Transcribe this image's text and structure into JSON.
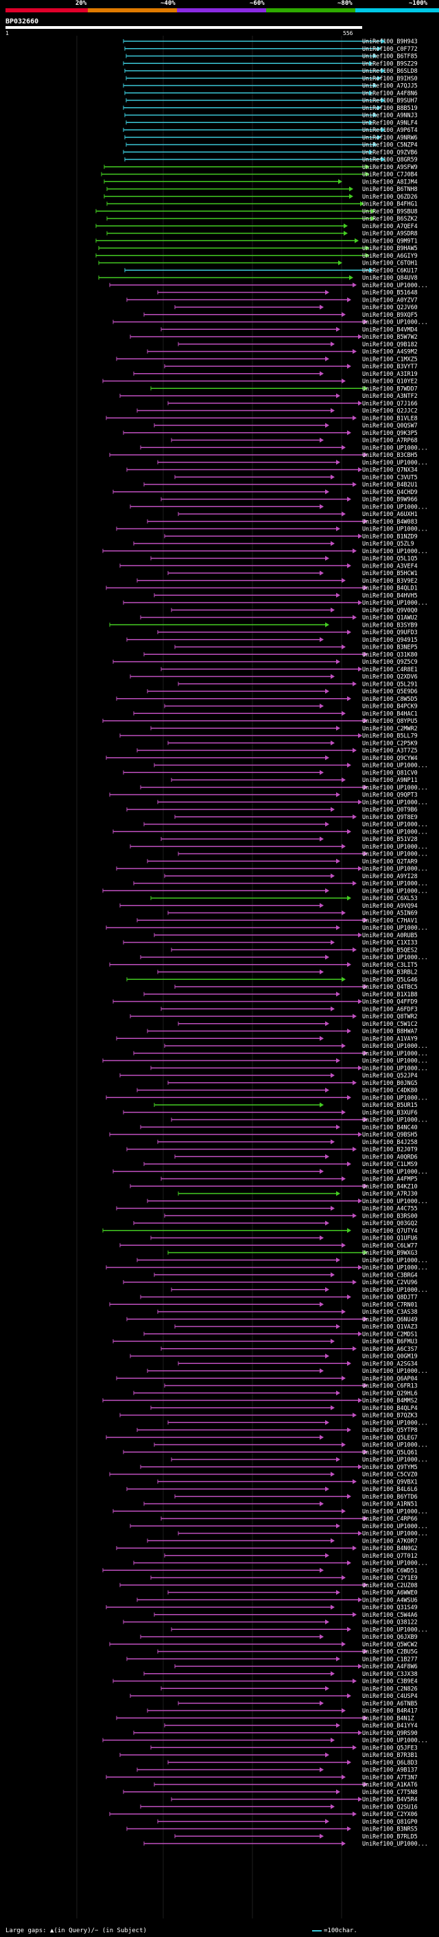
{
  "scale": {
    "segments": [
      {
        "color": "#e0002a"
      },
      {
        "color": "#e07a00"
      },
      {
        "color": "#8a2be2"
      },
      {
        "color": "#2eaa00"
      },
      {
        "color": "#00c8e6"
      }
    ],
    "ticks": [
      "20%",
      "~40%",
      "~60%",
      "~80%",
      "~100%"
    ]
  },
  "title": "BP032660",
  "ruler": {
    "start": "1",
    "end": "556"
  },
  "colors": {
    "cyan": "#3cc8d8",
    "green": "#44cc22",
    "magenta": "#c050c0"
  },
  "hits": [
    {
      "label": "UniRef100_B9H943",
      "color": "cyan"
    },
    {
      "label": "UniRef100_C0F772",
      "color": "cyan"
    },
    {
      "label": "UniRef100_B6TF85",
      "color": "cyan"
    },
    {
      "label": "UniRef100_B9SZ29",
      "color": "cyan"
    },
    {
      "label": "UniRef100_B6SLD8",
      "color": "cyan"
    },
    {
      "label": "UniRef100_B9IHS0",
      "color": "cyan"
    },
    {
      "label": "UniRef100_A7QJJ5",
      "color": "cyan"
    },
    {
      "label": "UniRef100_A4F8N6",
      "color": "cyan"
    },
    {
      "label": "UniRef100_B9SUH7",
      "color": "cyan"
    },
    {
      "label": "UniRef100_B8B519",
      "color": "cyan"
    },
    {
      "label": "UniRef100_A9NNJ3",
      "color": "cyan"
    },
    {
      "label": "UniRef100_A9NLF4",
      "color": "cyan"
    },
    {
      "label": "UniRef100_A9P6T4",
      "color": "cyan"
    },
    {
      "label": "UniRef100_A9NRW6",
      "color": "cyan"
    },
    {
      "label": "UniRef100_C5NZP4",
      "color": "cyan"
    },
    {
      "label": "UniRef100_Q9ZVB6",
      "color": "cyan"
    },
    {
      "label": "UniRef100_Q8GR59",
      "color": "cyan"
    },
    {
      "label": "UniRef100_A9SFW9",
      "color": "green"
    },
    {
      "label": "UniRef100_C7J0B4",
      "color": "green"
    },
    {
      "label": "UniRef100_A8IJM4",
      "color": "green"
    },
    {
      "label": "UniRef100_B6TNH8",
      "color": "green"
    },
    {
      "label": "UniRef100_Q6ZD26",
      "color": "green"
    },
    {
      "label": "UniRef100_B4FHG1",
      "color": "green"
    },
    {
      "label": "UniRef100_B9SBU8",
      "color": "green"
    },
    {
      "label": "UniRef100_B6SZK2",
      "color": "green"
    },
    {
      "label": "UniRef100_A7QEF4",
      "color": "green"
    },
    {
      "label": "UniRef100_A9SDR8",
      "color": "green"
    },
    {
      "label": "UniRef100_Q9M9T1",
      "color": "green"
    },
    {
      "label": "UniRef100_B9HAW5",
      "color": "green"
    },
    {
      "label": "UniRef100_A6GIY9",
      "color": "green"
    },
    {
      "label": "UniRef100_C6TOH1",
      "color": "green"
    },
    {
      "label": "UniRef100_C6KU17",
      "color": "cyan"
    },
    {
      "label": "UniRef100_Q84UV8",
      "color": "green"
    },
    {
      "label": "UniRef100_UP1000...",
      "color": "magenta"
    },
    {
      "label": "UniRef100_B51648",
      "color": "magenta"
    },
    {
      "label": "UniRef100_A0YZV7",
      "color": "magenta"
    },
    {
      "label": "UniRef100_Q2JV60",
      "color": "magenta"
    },
    {
      "label": "UniRef100_B9XQF5",
      "color": "magenta"
    },
    {
      "label": "UniRef100_UP1000...",
      "color": "magenta"
    },
    {
      "label": "UniRef100_B4VMD4",
      "color": "magenta"
    },
    {
      "label": "UniRef100_B5W7W2",
      "color": "magenta"
    },
    {
      "label": "UniRef100_Q9B182",
      "color": "magenta"
    },
    {
      "label": "UniRef100_A4S9M2",
      "color": "magenta"
    },
    {
      "label": "UniRef100_C1MXZ5",
      "color": "magenta"
    },
    {
      "label": "UniRef100_B3VYT7",
      "color": "magenta"
    },
    {
      "label": "UniRef100_A3IR19",
      "color": "magenta"
    },
    {
      "label": "UniRef100_Q10YE2",
      "color": "magenta"
    },
    {
      "label": "UniRef100_B7WDD7",
      "color": "green"
    },
    {
      "label": "UniRef100_A3NTF2",
      "color": "magenta"
    },
    {
      "label": "UniRef100_Q7J166",
      "color": "magenta"
    },
    {
      "label": "UniRef100_Q2JJC2",
      "color": "magenta"
    },
    {
      "label": "UniRef100_B1VLE8",
      "color": "magenta"
    },
    {
      "label": "UniRef100_Q0QSW7",
      "color": "magenta"
    },
    {
      "label": "UniRef100_Q9K3P5",
      "color": "magenta"
    },
    {
      "label": "UniRef100_A7RP68",
      "color": "magenta"
    },
    {
      "label": "UniRef100_UP1000...",
      "color": "magenta"
    },
    {
      "label": "UniRef100_B3CBH5",
      "color": "magenta"
    },
    {
      "label": "UniRef100_UP1000...",
      "color": "magenta"
    },
    {
      "label": "UniRef100_Q7NX34",
      "color": "magenta"
    },
    {
      "label": "UniRef100_C3VUT5",
      "color": "magenta"
    },
    {
      "label": "UniRef100_B4B2U1",
      "color": "magenta"
    },
    {
      "label": "UniRef100_Q4CHD9",
      "color": "magenta"
    },
    {
      "label": "UniRef100_B9W966",
      "color": "magenta"
    },
    {
      "label": "UniRef100_UP1000...",
      "color": "magenta"
    },
    {
      "label": "UniRef100_A6UXH1",
      "color": "magenta"
    },
    {
      "label": "UniRef100_B4W083",
      "color": "magenta"
    },
    {
      "label": "UniRef100_UP1000...",
      "color": "magenta"
    },
    {
      "label": "UniRef100_B1NZD9",
      "color": "magenta"
    },
    {
      "label": "UniRef100_Q5ZL9",
      "color": "magenta"
    },
    {
      "label": "UniRef100_UP1000...",
      "color": "magenta"
    },
    {
      "label": "UniRef100_Q5L1Q5",
      "color": "magenta"
    },
    {
      "label": "UniRef100_A3VEF4",
      "color": "magenta"
    },
    {
      "label": "UniRef100_B5HCW1",
      "color": "magenta"
    },
    {
      "label": "UniRef100_B3V9E2",
      "color": "magenta"
    },
    {
      "label": "UniRef100_B4QLD1",
      "color": "magenta"
    },
    {
      "label": "UniRef100_B4HVH5",
      "color": "magenta"
    },
    {
      "label": "UniRef100_UP1000...",
      "color": "magenta"
    },
    {
      "label": "UniRef100_Q9V0Q0",
      "color": "magenta"
    },
    {
      "label": "UniRef100_Q1AWU2",
      "color": "magenta"
    },
    {
      "label": "UniRef100_B3SYB9",
      "color": "green"
    },
    {
      "label": "UniRef100_Q9UFD3",
      "color": "magenta"
    },
    {
      "label": "UniRef100_Q94915",
      "color": "magenta"
    },
    {
      "label": "UniRef100_B3NEP5",
      "color": "magenta"
    },
    {
      "label": "UniRef100_Q31K80",
      "color": "magenta"
    },
    {
      "label": "UniRef100_Q9Z5C9",
      "color": "magenta"
    },
    {
      "label": "UniRef100_C4R8E1",
      "color": "magenta"
    },
    {
      "label": "UniRef100_Q2XDV6",
      "color": "magenta"
    },
    {
      "label": "UniRef100_Q5L291",
      "color": "magenta"
    },
    {
      "label": "UniRef100_Q5E9D6",
      "color": "magenta"
    },
    {
      "label": "UniRef100_C8W5D5",
      "color": "magenta"
    },
    {
      "label": "UniRef100_B4PCK9",
      "color": "magenta"
    },
    {
      "label": "UniRef100_B4HAC1",
      "color": "magenta"
    },
    {
      "label": "UniRef100_Q8YPU5",
      "color": "magenta"
    },
    {
      "label": "UniRef100_C2MWR2",
      "color": "magenta"
    },
    {
      "label": "UniRef100_B5LL79",
      "color": "magenta"
    },
    {
      "label": "UniRef100_C2P5K9",
      "color": "magenta"
    },
    {
      "label": "UniRef100_A3T7Z5",
      "color": "magenta"
    },
    {
      "label": "UniRef100_Q9CYW4",
      "color": "magenta"
    },
    {
      "label": "UniRef100_UP1000...",
      "color": "magenta"
    },
    {
      "label": "UniRef100_Q81CV0",
      "color": "magenta"
    },
    {
      "label": "UniRef100_A9NP11",
      "color": "magenta"
    },
    {
      "label": "UniRef100_UP1000...",
      "color": "magenta"
    },
    {
      "label": "UniRef100_Q9QPT3",
      "color": "magenta"
    },
    {
      "label": "UniRef100_UP1000...",
      "color": "magenta"
    },
    {
      "label": "UniRef100_Q0T9B6",
      "color": "magenta"
    },
    {
      "label": "UniRef100_Q9T8E9",
      "color": "magenta"
    },
    {
      "label": "UniRef100_UP1000...",
      "color": "magenta"
    },
    {
      "label": "UniRef100_UP1000...",
      "color": "magenta"
    },
    {
      "label": "UniRef100_B51V28",
      "color": "magenta"
    },
    {
      "label": "UniRef100_UP1000...",
      "color": "magenta"
    },
    {
      "label": "UniRef100_UP1000...",
      "color": "magenta"
    },
    {
      "label": "UniRef100_Q2TAR9",
      "color": "magenta"
    },
    {
      "label": "UniRef100_UP1000...",
      "color": "magenta"
    },
    {
      "label": "UniRef100_A9YI28",
      "color": "magenta"
    },
    {
      "label": "UniRef100_UP1000...",
      "color": "magenta"
    },
    {
      "label": "UniRef100_UP1000...",
      "color": "magenta"
    },
    {
      "label": "UniRef100_C6XL53",
      "color": "green"
    },
    {
      "label": "UniRef100_A9VQ94",
      "color": "magenta"
    },
    {
      "label": "UniRef100_A5IN69",
      "color": "magenta"
    },
    {
      "label": "UniRef100_C7HAV1",
      "color": "magenta"
    },
    {
      "label": "UniRef100_UP1000...",
      "color": "magenta"
    },
    {
      "label": "UniRef100_A0RUB5",
      "color": "magenta"
    },
    {
      "label": "UniRef100_C1XI33",
      "color": "magenta"
    },
    {
      "label": "UniRef100_B5QES2",
      "color": "magenta"
    },
    {
      "label": "UniRef100_UP1000...",
      "color": "magenta"
    },
    {
      "label": "UniRef100_C3LIT5",
      "color": "magenta"
    },
    {
      "label": "UniRef100_B3RBL2",
      "color": "magenta"
    },
    {
      "label": "UniRef100_Q5LG46",
      "color": "green"
    },
    {
      "label": "UniRef100_Q4TBC5",
      "color": "magenta"
    },
    {
      "label": "UniRef100_B1X1B8",
      "color": "magenta"
    },
    {
      "label": "UniRef100_Q4FFD9",
      "color": "magenta"
    },
    {
      "label": "UniRef100_A6FDF3",
      "color": "magenta"
    },
    {
      "label": "UniRef100_Q8TWR2",
      "color": "magenta"
    },
    {
      "label": "UniRef100_C5W1C2",
      "color": "magenta"
    },
    {
      "label": "UniRef100_B8HWA7",
      "color": "magenta"
    },
    {
      "label": "UniRef100_A1VAY9",
      "color": "magenta"
    },
    {
      "label": "UniRef100_UP1000...",
      "color": "magenta"
    },
    {
      "label": "UniRef100_UP1000...",
      "color": "magenta"
    },
    {
      "label": "UniRef100_UP1000...",
      "color": "magenta"
    },
    {
      "label": "UniRef100_UP1000...",
      "color": "magenta"
    },
    {
      "label": "UniRef100_Q52JP4",
      "color": "magenta"
    },
    {
      "label": "UniRef100_B0JNG5",
      "color": "magenta"
    },
    {
      "label": "UniRef100_C4DK80",
      "color": "magenta"
    },
    {
      "label": "UniRef100_UP1000...",
      "color": "magenta"
    },
    {
      "label": "UniRef100_B5UR15",
      "color": "green"
    },
    {
      "label": "UniRef100_B3XUF6",
      "color": "magenta"
    },
    {
      "label": "UniRef100_UP1000...",
      "color": "magenta"
    },
    {
      "label": "UniRef100_B4NC40",
      "color": "magenta"
    },
    {
      "label": "UniRef100_Q9BSH5",
      "color": "magenta"
    },
    {
      "label": "UniRef100_B4J258",
      "color": "magenta"
    },
    {
      "label": "UniRef100_B2J0T9",
      "color": "magenta"
    },
    {
      "label": "UniRef100_A0QRD6",
      "color": "magenta"
    },
    {
      "label": "UniRef100_C1LMS9",
      "color": "magenta"
    },
    {
      "label": "UniRef100_UP1000...",
      "color": "magenta"
    },
    {
      "label": "UniRef100_A4FMP5",
      "color": "magenta"
    },
    {
      "label": "UniRef100_B4KZ10",
      "color": "magenta"
    },
    {
      "label": "UniRef100_A7RJ30",
      "color": "green"
    },
    {
      "label": "UniRef100_UP1000...",
      "color": "magenta"
    },
    {
      "label": "UniRef100_A4C755",
      "color": "magenta"
    },
    {
      "label": "UniRef100_B3RS00",
      "color": "magenta"
    },
    {
      "label": "UniRef100_Q03GQ2",
      "color": "magenta"
    },
    {
      "label": "UniRef100_Q7UTY4",
      "color": "green"
    },
    {
      "label": "UniRef100_Q1UFU6",
      "color": "magenta"
    },
    {
      "label": "UniRef100_C6LW77",
      "color": "magenta"
    },
    {
      "label": "UniRef100_B9WXG3",
      "color": "green"
    },
    {
      "label": "UniRef100_UP1000...",
      "color": "magenta"
    },
    {
      "label": "UniRef100_UP1000...",
      "color": "magenta"
    },
    {
      "label": "UniRef100_C3BRG4",
      "color": "magenta"
    },
    {
      "label": "UniRef100_C2VU96",
      "color": "magenta"
    },
    {
      "label": "UniRef100_UP1000...",
      "color": "magenta"
    },
    {
      "label": "UniRef100_Q8DJT7",
      "color": "magenta"
    },
    {
      "label": "UniRef100_C7RN01",
      "color": "magenta"
    },
    {
      "label": "UniRef100_C3AS38",
      "color": "magenta"
    },
    {
      "label": "UniRef100_Q6NU49",
      "color": "magenta"
    },
    {
      "label": "UniRef100_Q1VAZ3",
      "color": "magenta"
    },
    {
      "label": "UniRef100_C2MDS1",
      "color": "magenta"
    },
    {
      "label": "UniRef100_B6FMU3",
      "color": "magenta"
    },
    {
      "label": "UniRef100_A6C3S7",
      "color": "magenta"
    },
    {
      "label": "UniRef100_Q0GM19",
      "color": "magenta"
    },
    {
      "label": "UniRef100_A2SG34",
      "color": "magenta"
    },
    {
      "label": "UniRef100_UP1000...",
      "color": "magenta"
    },
    {
      "label": "UniRef100_Q6AP04",
      "color": "magenta"
    },
    {
      "label": "UniRef100_C6FR13",
      "color": "magenta"
    },
    {
      "label": "UniRef100_Q29HL6",
      "color": "magenta"
    },
    {
      "label": "UniRef100_B4MMS2",
      "color": "magenta"
    },
    {
      "label": "UniRef100_B4QLP4",
      "color": "magenta"
    },
    {
      "label": "UniRef100_B7QZK3",
      "color": "magenta"
    },
    {
      "label": "UniRef100_UP1000...",
      "color": "magenta"
    },
    {
      "label": "UniRef100_Q5YTP8",
      "color": "magenta"
    },
    {
      "label": "UniRef100_Q5LEG7",
      "color": "magenta"
    },
    {
      "label": "UniRef100_UP1000...",
      "color": "magenta"
    },
    {
      "label": "UniRef100_Q5LQ61",
      "color": "magenta"
    },
    {
      "label": "UniRef100_UP1000...",
      "color": "magenta"
    },
    {
      "label": "UniRef100_Q9TYM5",
      "color": "magenta"
    },
    {
      "label": "UniRef100_C5CVZ0",
      "color": "magenta"
    },
    {
      "label": "UniRef100_Q9VBX1",
      "color": "magenta"
    },
    {
      "label": "UniRef100_B4L6L6",
      "color": "magenta"
    },
    {
      "label": "UniRef100_B6YTD6",
      "color": "magenta"
    },
    {
      "label": "UniRef100_A1RN51",
      "color": "magenta"
    },
    {
      "label": "UniRef100_UP1000...",
      "color": "magenta"
    },
    {
      "label": "UniRef100_C4RP66",
      "color": "magenta"
    },
    {
      "label": "UniRef100_UP1000...",
      "color": "magenta"
    },
    {
      "label": "UniRef100_UP1000...",
      "color": "magenta"
    },
    {
      "label": "UniRef100_A7KOR7",
      "color": "magenta"
    },
    {
      "label": "UniRef100_B4N0G2",
      "color": "magenta"
    },
    {
      "label": "UniRef100_Q7T012",
      "color": "magenta"
    },
    {
      "label": "UniRef100_UP1000...",
      "color": "magenta"
    },
    {
      "label": "UniRef100_C6WD51",
      "color": "magenta"
    },
    {
      "label": "UniRef100_C2Y1E9",
      "color": "magenta"
    },
    {
      "label": "UniRef100_C2UZ08",
      "color": "magenta"
    },
    {
      "label": "UniRef100_A6WWE0",
      "color": "magenta"
    },
    {
      "label": "UniRef100_A4WSU6",
      "color": "magenta"
    },
    {
      "label": "UniRef100_Q31S49",
      "color": "magenta"
    },
    {
      "label": "UniRef100_C5W4A6",
      "color": "magenta"
    },
    {
      "label": "UniRef100_Q38122",
      "color": "magenta"
    },
    {
      "label": "UniRef100_UP1000...",
      "color": "magenta"
    },
    {
      "label": "UniRef100_Q6JXB9",
      "color": "magenta"
    },
    {
      "label": "UniRef100_Q5WCW2",
      "color": "magenta"
    },
    {
      "label": "UniRef100_C2BU5G",
      "color": "magenta"
    },
    {
      "label": "UniRef100_C1B277",
      "color": "magenta"
    },
    {
      "label": "UniRef100_A4F8W6",
      "color": "magenta"
    },
    {
      "label": "UniRef100_C3JX38",
      "color": "magenta"
    },
    {
      "label": "UniRef100_C3B9E4",
      "color": "magenta"
    },
    {
      "label": "UniRef100_C2N826",
      "color": "magenta"
    },
    {
      "label": "UniRef100_C4USP4",
      "color": "magenta"
    },
    {
      "label": "UniRef100_A6TNB5",
      "color": "magenta"
    },
    {
      "label": "UniRef100_B4R417",
      "color": "magenta"
    },
    {
      "label": "UniRef100_B4N1Z",
      "color": "magenta"
    },
    {
      "label": "UniRef100_B41YY4",
      "color": "magenta"
    },
    {
      "label": "UniRef100_Q9RS90",
      "color": "magenta"
    },
    {
      "label": "UniRef100_UP1000...",
      "color": "magenta"
    },
    {
      "label": "UniRef100_Q5JFE3",
      "color": "magenta"
    },
    {
      "label": "UniRef100_B7R3B1",
      "color": "magenta"
    },
    {
      "label": "UniRef100_Q6L8D3",
      "color": "magenta"
    },
    {
      "label": "UniRef100_A9B137",
      "color": "magenta"
    },
    {
      "label": "UniRef100_A7T3N7",
      "color": "magenta"
    },
    {
      "label": "UniRef100_A1KAT6",
      "color": "magenta"
    },
    {
      "label": "UniRef100_C7T5N8",
      "color": "magenta"
    },
    {
      "label": "UniRef100_B4V5R4",
      "color": "magenta"
    },
    {
      "label": "UniRef100_Q2SU16",
      "color": "magenta"
    },
    {
      "label": "UniRef100_C2YX06",
      "color": "magenta"
    },
    {
      "label": "UniRef100_Q81GP0",
      "color": "magenta"
    },
    {
      "label": "UniRef100_B3NRS5",
      "color": "magenta"
    },
    {
      "label": "UniRef100_B7RLD5",
      "color": "magenta"
    },
    {
      "label": "UniRef100_UP1000...",
      "color": "magenta"
    }
  ],
  "footer": {
    "left": "Large gaps: ▲(in Query)/− (in Subject)",
    "right": "=100char."
  }
}
